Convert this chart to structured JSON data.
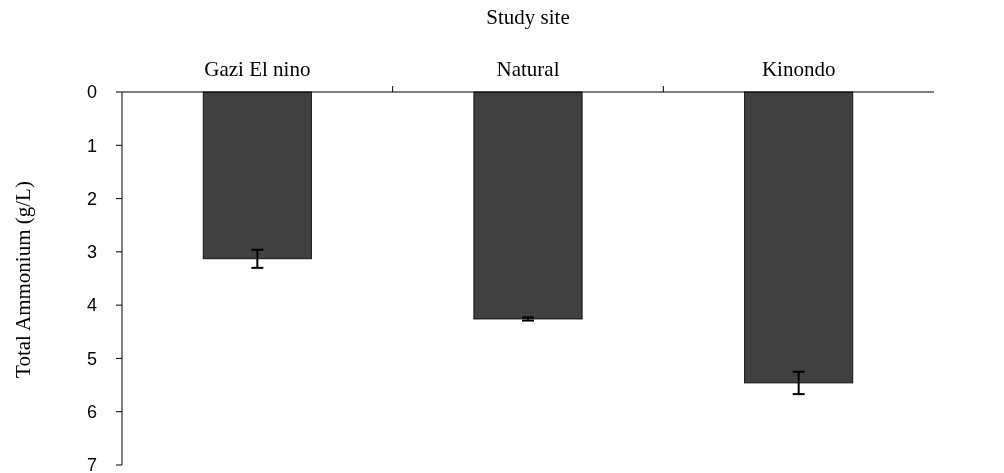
{
  "chart_data": {
    "type": "bar",
    "xlabel": "Study site",
    "ylabel": "Total Ammonium (g/L)",
    "categories": [
      "Gazi El nino",
      "Natural",
      "Kinondo"
    ],
    "values": [
      3.13,
      4.26,
      5.46
    ],
    "errors": [
      0.17,
      0.03,
      0.21
    ],
    "color": "#404040",
    "ylim": [
      7,
      0
    ],
    "yticks": [
      0,
      1,
      2,
      3,
      4,
      5,
      6,
      7
    ],
    "grid": false
  }
}
